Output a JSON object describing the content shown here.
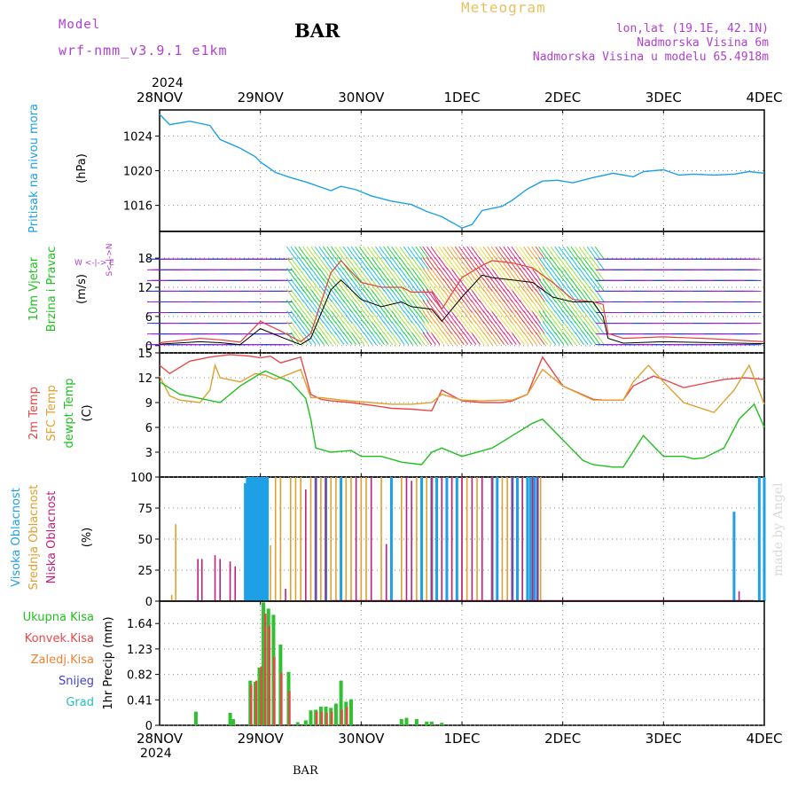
{
  "header": {
    "model_label": "Model",
    "model_name": "wrf-nmm_v3.9.1 e1km",
    "station": "BAR",
    "title": "Meteogram",
    "lonlat": "lon,lat (19.1E, 42.1N)",
    "elevation": "Nadmorska Visina 6m",
    "model_elevation": "Nadmorska Visina u modelu 65.4918m"
  },
  "footer": {
    "station": "BAR",
    "credit": "made by Angel"
  },
  "colors": {
    "pressure": "#1ea0e6",
    "temp2m": "#e84848",
    "sfc_temp": "#e0a030",
    "dewpoint": "#20c020",
    "cloud_high": "#1ea0e6",
    "cloud_mid": "#e0a030",
    "cloud_low": "#c0207c",
    "precip_total": "#30c030",
    "precip_conv": "#e84848",
    "precip_frz": "#f08030",
    "snow": "#4040e0",
    "hail": "#20c0c0"
  },
  "chart_data": [
    {
      "type": "line",
      "title": "Pritisak na nivou mora",
      "ylabel": "(hPa)",
      "x_start": "28NOV",
      "x_year": "2024",
      "x_ticks": [
        "28NOV",
        "29NOV",
        "30NOV",
        "1DEC",
        "2DEC",
        "3DEC",
        "4DEC"
      ],
      "x_range_days": [
        0,
        6
      ],
      "ylim": [
        1013,
        1027
      ],
      "yticks": [
        1016,
        1020,
        1024
      ],
      "series": [
        {
          "name": "Pritisak na nivou mora",
          "x": [
            0,
            0.1,
            0.3,
            0.5,
            0.6,
            0.8,
            0.95,
            1.0,
            1.15,
            1.3,
            1.45,
            1.6,
            1.7,
            1.8,
            1.95,
            2.1,
            2.3,
            2.5,
            2.65,
            2.8,
            3.0,
            3.1,
            3.2,
            3.4,
            3.5,
            3.65,
            3.8,
            3.95,
            4.1,
            4.3,
            4.5,
            4.7,
            4.8,
            5.0,
            5.15,
            5.3,
            5.5,
            5.7,
            5.85,
            6.0
          ],
          "values": [
            1026.5,
            1025.3,
            1025.7,
            1025.2,
            1023.6,
            1022.6,
            1021.6,
            1021.0,
            1019.8,
            1019.2,
            1018.7,
            1018.1,
            1017.7,
            1018.2,
            1017.8,
            1017.1,
            1016.5,
            1016.1,
            1015.3,
            1014.7,
            1013.4,
            1013.8,
            1015.4,
            1015.9,
            1016.6,
            1017.9,
            1018.8,
            1018.9,
            1018.6,
            1019.2,
            1019.7,
            1019.3,
            1019.9,
            1020.1,
            1019.5,
            1019.6,
            1019.5,
            1019.6,
            1019.9,
            1019.7
          ]
        }
      ]
    },
    {
      "type": "line",
      "title": "10m Vjetar Brzina i Pravac",
      "ylabel": "(m/s)",
      "ylim": [
        -1.5,
        23.5
      ],
      "yticks": [
        0,
        6,
        12,
        18
      ],
      "compass_label": "W <-|-> E",
      "compass_label_v": "S<-|->N",
      "series": [
        {
          "name": "speed",
          "x": [
            0,
            0.4,
            0.6,
            0.8,
            1.0,
            1.2,
            1.4,
            1.5,
            1.7,
            1.8,
            2.0,
            2.2,
            2.4,
            2.5,
            2.7,
            2.8,
            3.0,
            3.2,
            3.3,
            3.5,
            3.7,
            3.9,
            4.1,
            4.3,
            4.4,
            4.45,
            4.6,
            5.0,
            5.5,
            6.0
          ],
          "values": [
            0.3,
            0.8,
            0.6,
            0.2,
            3.5,
            1.8,
            0.2,
            1.5,
            11.5,
            13.5,
            9.5,
            8.0,
            9.0,
            8.0,
            7.5,
            5.0,
            10.0,
            14.5,
            14.0,
            13.5,
            13.0,
            10.0,
            9.0,
            9.0,
            6.0,
            1.5,
            0.5,
            0.8,
            0.6,
            0.4
          ]
        },
        {
          "name": "gust",
          "x": [
            0,
            0.4,
            0.6,
            0.8,
            1.0,
            1.2,
            1.4,
            1.5,
            1.7,
            1.8,
            2.0,
            2.2,
            2.4,
            2.5,
            2.7,
            2.8,
            3.0,
            3.2,
            3.3,
            3.5,
            3.7,
            3.9,
            4.1,
            4.3,
            4.4,
            4.45,
            4.6,
            5.0,
            5.5,
            6.0
          ],
          "values": [
            0.6,
            1.5,
            1.2,
            0.7,
            5.0,
            3.0,
            0.8,
            2.5,
            15.0,
            17.5,
            13.0,
            12.0,
            12.0,
            11.0,
            11.0,
            7.5,
            14.0,
            16.5,
            17.5,
            17.0,
            16.0,
            13.0,
            9.5,
            9.0,
            8.5,
            2.5,
            1.5,
            1.8,
            1.4,
            0.8
          ]
        }
      ],
      "barb_bands": [
        {
          "x_from": 0.0,
          "x_to": 1.35,
          "color_scheme": "low"
        },
        {
          "x_from": 1.35,
          "x_to": 2.35,
          "color_scheme": "moderate"
        },
        {
          "x_from": 2.35,
          "x_to": 2.7,
          "color_scheme": "moderate"
        },
        {
          "x_from": 2.7,
          "x_to": 3.85,
          "color_scheme": "strong"
        },
        {
          "x_from": 3.85,
          "x_to": 4.45,
          "color_scheme": "moderate"
        },
        {
          "x_from": 4.45,
          "x_to": 6.0,
          "color_scheme": "low"
        }
      ]
    },
    {
      "type": "line",
      "title": "2m Temp / SFC Temp / dewpt Temp",
      "ylabel": "(C)",
      "ylim": [
        0,
        15
      ],
      "yticks": [
        0,
        3,
        6,
        9,
        12,
        15
      ],
      "series": [
        {
          "name": "2m Temp",
          "x": [
            0,
            0.1,
            0.3,
            0.5,
            0.7,
            0.9,
            1.0,
            1.1,
            1.2,
            1.4,
            1.5,
            1.6,
            1.7,
            1.9,
            2.2,
            2.3,
            2.5,
            2.7,
            2.8,
            3.0,
            3.2,
            3.4,
            3.5,
            3.65,
            3.8,
            4.0,
            4.3,
            4.4,
            4.6,
            4.7,
            4.9,
            5.0,
            5.2,
            5.4,
            5.6,
            5.8,
            6.0
          ],
          "values": [
            13.5,
            12.5,
            14.0,
            14.5,
            14.8,
            14.6,
            14.4,
            14.6,
            13.8,
            14.5,
            10.0,
            9.4,
            9.2,
            9.0,
            8.5,
            8.3,
            8.2,
            8.0,
            10.5,
            9.2,
            9.0,
            9.0,
            9.2,
            10.0,
            14.5,
            11.0,
            9.4,
            9.3,
            9.3,
            11.0,
            12.2,
            11.8,
            10.8,
            11.3,
            11.8,
            12.0,
            11.8
          ]
        },
        {
          "name": "SFC Temp",
          "x": [
            0,
            0.1,
            0.2,
            0.4,
            0.5,
            0.55,
            0.6,
            0.8,
            0.95,
            1.05,
            1.15,
            1.3,
            1.4,
            1.5,
            1.6,
            1.8,
            2.1,
            2.3,
            2.5,
            2.7,
            2.8,
            3.0,
            3.2,
            3.4,
            3.5,
            3.65,
            3.8,
            4.0,
            4.3,
            4.4,
            4.6,
            4.7,
            4.85,
            5.0,
            5.2,
            5.5,
            5.7,
            5.85,
            6.0
          ],
          "values": [
            12.2,
            9.8,
            9.3,
            9.0,
            10.5,
            13.5,
            12.0,
            11.5,
            12.5,
            12.3,
            11.8,
            12.5,
            13.0,
            9.6,
            9.6,
            9.3,
            9.0,
            8.8,
            8.8,
            9.0,
            10.0,
            9.3,
            9.2,
            9.3,
            9.3,
            10.0,
            13.0,
            11.0,
            9.3,
            9.3,
            9.3,
            11.5,
            13.5,
            11.5,
            9.0,
            7.8,
            10.5,
            13.5,
            8.8
          ]
        },
        {
          "name": "dewpt Temp",
          "x": [
            0,
            0.2,
            0.4,
            0.6,
            0.8,
            1.0,
            1.05,
            1.2,
            1.3,
            1.45,
            1.5,
            1.55,
            1.7,
            1.9,
            2.0,
            2.2,
            2.4,
            2.6,
            2.7,
            2.8,
            3.0,
            3.3,
            3.5,
            3.7,
            3.8,
            4.0,
            4.2,
            4.3,
            4.5,
            4.6,
            4.8,
            5.0,
            5.2,
            5.3,
            5.4,
            5.6,
            5.75,
            5.9,
            6.0
          ],
          "values": [
            11.5,
            10.0,
            9.5,
            9.0,
            11.0,
            12.5,
            12.8,
            12.0,
            11.5,
            9.5,
            7.0,
            3.5,
            3.0,
            3.2,
            2.5,
            2.5,
            1.8,
            1.5,
            3.0,
            3.5,
            2.5,
            3.5,
            5.0,
            6.5,
            7.0,
            4.5,
            2.0,
            1.5,
            1.2,
            1.2,
            5.0,
            2.5,
            2.5,
            2.2,
            2.3,
            3.5,
            7.0,
            8.8,
            6.0
          ]
        }
      ]
    },
    {
      "type": "bar",
      "title": "Visoka Oblacnost / Srednja Oblacnost / Niska Oblacnost",
      "ylabel": "(%)",
      "ylim": [
        0,
        100
      ],
      "yticks": [
        0,
        25,
        50,
        75,
        100
      ],
      "series": [
        {
          "name": "Visoka Oblacnost",
          "x": [
            0.85,
            0.87,
            0.89,
            0.91,
            0.93,
            0.95,
            0.97,
            0.99,
            1.01,
            1.03,
            1.05,
            1.07,
            1.55,
            1.65,
            1.8,
            2.3,
            2.6,
            2.7,
            2.75,
            2.85,
            2.95,
            3.3,
            3.35,
            3.5,
            3.55,
            3.65,
            3.68,
            3.72,
            3.75,
            5.7,
            5.95,
            6.0
          ],
          "values": [
            95,
            100,
            100,
            100,
            100,
            100,
            100,
            100,
            100,
            100,
            100,
            100,
            100,
            100,
            100,
            100,
            100,
            100,
            100,
            100,
            100,
            100,
            100,
            100,
            100,
            100,
            100,
            100,
            100,
            72,
            100,
            100
          ]
        },
        {
          "name": "Srednja Oblacnost",
          "x": [
            0.12,
            0.16,
            1.1,
            1.15,
            1.2,
            1.3,
            1.35,
            1.4,
            1.5,
            1.6,
            1.7,
            1.75,
            1.85,
            1.9,
            2.0,
            2.05,
            2.2,
            2.4,
            2.55,
            2.65,
            2.7,
            2.8,
            2.9,
            3.0,
            3.05,
            3.15,
            3.2,
            3.3,
            3.4,
            3.45,
            3.6,
            3.7,
            3.78
          ],
          "values": [
            5,
            62,
            45,
            100,
            100,
            100,
            100,
            100,
            100,
            100,
            100,
            100,
            100,
            100,
            100,
            100,
            100,
            100,
            100,
            100,
            100,
            100,
            100,
            100,
            100,
            100,
            100,
            100,
            100,
            100,
            100,
            100,
            100
          ]
        },
        {
          "name": "Niska Oblacnost",
          "x": [
            0.38,
            0.42,
            0.55,
            0.6,
            0.7,
            0.75,
            1.25,
            1.45,
            1.55,
            1.65,
            1.95,
            2.1,
            2.25,
            2.45,
            2.5,
            2.7,
            2.8,
            2.9,
            3.0,
            3.1,
            3.2,
            3.3,
            3.5,
            3.6,
            3.7,
            3.75,
            5.75
          ],
          "values": [
            34,
            34,
            37,
            34,
            32,
            28,
            10,
            90,
            100,
            100,
            100,
            100,
            46,
            100,
            97,
            100,
            100,
            100,
            100,
            100,
            100,
            100,
            100,
            100,
            100,
            100,
            8
          ]
        }
      ]
    },
    {
      "type": "bar",
      "title": "1hr Precip",
      "ylabel": "1hr Precip (mm)",
      "ylim": [
        0,
        2.0
      ],
      "yticks": [
        0,
        0.41,
        0.82,
        1.23,
        1.64
      ],
      "series": [
        {
          "name": "Ukupna Kisa",
          "x": [
            0.36,
            0.7,
            0.73,
            0.9,
            0.95,
            0.99,
            1.03,
            1.08,
            1.13,
            1.2,
            1.28,
            1.37,
            1.45,
            1.5,
            1.55,
            1.6,
            1.65,
            1.7,
            1.75,
            1.8,
            1.85,
            1.9,
            2.4,
            2.45,
            2.55,
            2.65,
            2.7,
            2.8
          ],
          "values": [
            0.22,
            0.2,
            0.1,
            0.72,
            0.7,
            0.93,
            1.98,
            1.88,
            1.78,
            1.3,
            0.86,
            0.05,
            0.08,
            0.24,
            0.25,
            0.3,
            0.3,
            0.28,
            0.35,
            0.72,
            0.38,
            0.42,
            0.1,
            0.12,
            0.1,
            0.06,
            0.06,
            0.04
          ]
        },
        {
          "name": "Konvek.Kisa",
          "x": [
            0.9,
            0.95,
            1.0,
            1.04,
            1.08,
            1.13,
            1.2,
            1.28,
            1.55,
            1.6,
            1.65,
            1.7,
            1.8,
            1.85
          ],
          "values": [
            0.65,
            0.72,
            0.95,
            1.8,
            1.6,
            1.1,
            0.85,
            0.55,
            0.22,
            0.22,
            0.2,
            0.22,
            0.25,
            0.3
          ]
        }
      ],
      "legend": [
        "Ukupna Kisa",
        "Konvek.Kisa",
        "Zaledj.Kisa",
        "Snijeg",
        "Grad"
      ]
    }
  ]
}
